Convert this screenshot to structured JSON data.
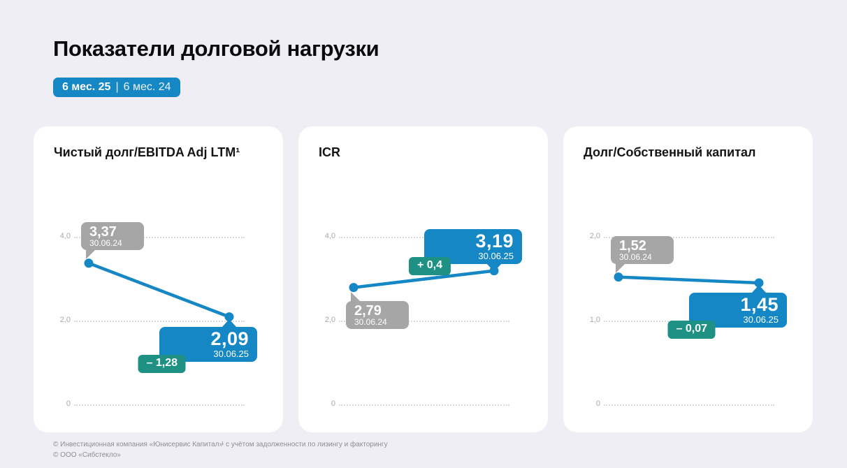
{
  "page": {
    "title": "Показатели долговой нагрузки",
    "badge": {
      "primary": "6 мес. 25",
      "separator": "|",
      "secondary": "6 мес. 24"
    }
  },
  "colors": {
    "accent_blue": "#1587c5",
    "teal_green": "#1f9084",
    "tooltip_grey": "#a6a6a6",
    "background": "#eeeef4",
    "card_background": "#ffffff",
    "gridline": "#d9d9de",
    "tick_label": "#a7a7af",
    "footer_text": "#8d8d94",
    "title_text": "#0b0b0d"
  },
  "chart_data": [
    {
      "type": "line",
      "title": "Чистый долг/EBITDA Adj LTM¹",
      "x": [
        "30.06.24",
        "30.06.25"
      ],
      "values": [
        3.37,
        2.09
      ],
      "point_labels": [
        "3,37",
        "2,09"
      ],
      "delta": -1.28,
      "delta_label": "– 1,28",
      "ticks": [
        {
          "label": "4,0",
          "value": 4.0
        },
        {
          "label": "2,0",
          "value": 2.0
        },
        {
          "label": "0",
          "value": 0
        }
      ],
      "ylim": [
        0,
        4.0
      ],
      "grid": true,
      "legend": "none"
    },
    {
      "type": "line",
      "title": "ICR",
      "x": [
        "30.06.24",
        "30.06.25"
      ],
      "values": [
        2.79,
        3.19
      ],
      "point_labels": [
        "2,79",
        "3,19"
      ],
      "delta": 0.4,
      "delta_label": "+ 0,4",
      "ticks": [
        {
          "label": "4,0",
          "value": 4.0
        },
        {
          "label": "2,0",
          "value": 2.0
        },
        {
          "label": "0",
          "value": 0
        }
      ],
      "ylim": [
        0,
        4.0
      ],
      "grid": true,
      "legend": "none"
    },
    {
      "type": "line",
      "title": "Долг/Собственный капитал",
      "x": [
        "30.06.24",
        "30.06.25"
      ],
      "values": [
        1.52,
        1.45
      ],
      "point_labels": [
        "1,52",
        "1,45"
      ],
      "delta": -0.07,
      "delta_label": "– 0,07",
      "ticks": [
        {
          "label": "2,0",
          "value": 2.0
        },
        {
          "label": "1,0",
          "value": 1.0
        },
        {
          "label": "0",
          "value": 0
        }
      ],
      "ylim": [
        0,
        2.0
      ],
      "grid": true,
      "legend": "none"
    }
  ],
  "footer": {
    "line1": "© Инвестиционная компания «Юнисервис Капитал»",
    "line2": "© ООО «Сибстекло»",
    "footnote": "¹ с учётом задолженности по лизингу и факторингу"
  }
}
